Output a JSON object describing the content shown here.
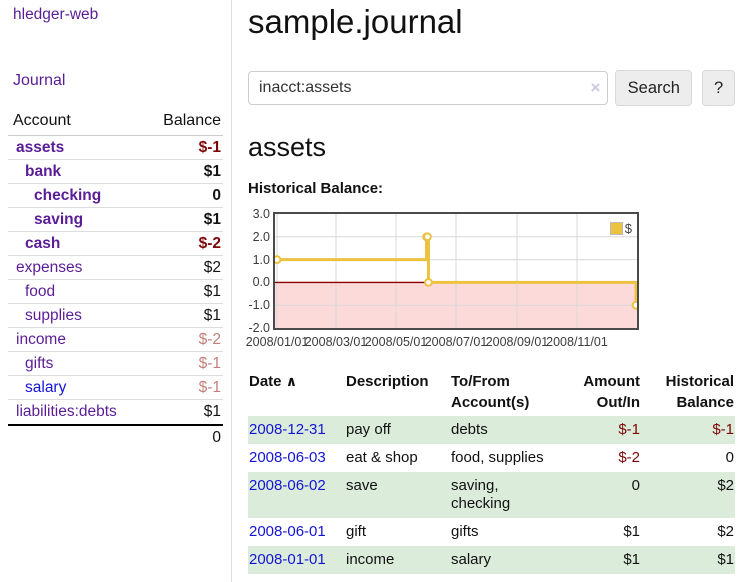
{
  "colors": {
    "link-purple": "#5a1d96",
    "link-blue": "#1414d6",
    "negative-strong": "#7d0606",
    "negative-soft": "#c47e7e",
    "row-stripe-green": "#dcecdb",
    "chart-line": "#edc240",
    "divider": "#dddddd"
  },
  "app": {
    "brand": "hledger-web",
    "nav_journal": "Journal"
  },
  "sidebar": {
    "header": {
      "account": "Account",
      "balance": "Balance"
    },
    "accounts": [
      {
        "name": "assets",
        "balance": "$-1",
        "level": 1,
        "bold": true
      },
      {
        "name": "bank",
        "balance": "$1",
        "level": 2,
        "bold": true
      },
      {
        "name": "checking",
        "balance": "0",
        "level": 3,
        "bold": true
      },
      {
        "name": "saving",
        "balance": "$1",
        "level": 3,
        "bold": true
      },
      {
        "name": "cash",
        "balance": "$-2",
        "level": 2,
        "bold": true
      },
      {
        "name": "expenses",
        "balance": "$2",
        "level": 1,
        "bold": false
      },
      {
        "name": "food",
        "balance": "$1",
        "level": 2,
        "bold": false
      },
      {
        "name": "supplies",
        "balance": "$1",
        "level": 2,
        "bold": false
      },
      {
        "name": "income",
        "balance": "$-2",
        "level": 1,
        "bold": false
      },
      {
        "name": "gifts",
        "balance": "$-1",
        "level": 2,
        "bold": false
      },
      {
        "name": "salary",
        "balance": "$-1",
        "level": 2,
        "bold": false,
        "link": "blue"
      },
      {
        "name": "liabilities:debts",
        "balance": "$1",
        "level": 1,
        "bold": false
      }
    ],
    "total": "0"
  },
  "header": {
    "title": "sample.journal"
  },
  "search": {
    "value": "inacct:assets",
    "clear_icon": "×",
    "button": "Search",
    "help_button": "?"
  },
  "account_page": {
    "heading": "assets"
  },
  "chart_data": {
    "type": "line",
    "step": true,
    "title": "Historical Balance:",
    "series": [
      {
        "name": "$",
        "color": "#edc240",
        "points": [
          {
            "date": "2008-01-01",
            "value": 1
          },
          {
            "date": "2008-06-01",
            "value": 2
          },
          {
            "date": "2008-06-02",
            "value": 2
          },
          {
            "date": "2008-06-03",
            "value": 0
          },
          {
            "date": "2008-12-31",
            "value": -1
          }
        ]
      }
    ],
    "x_range": [
      "2008-01-01",
      "2008-12-31"
    ],
    "x_ticks": [
      "2008/01/01",
      "2008/03/01",
      "2008/05/01",
      "2008/07/01",
      "2008/09/01",
      "2008/11/01"
    ],
    "y_ticks": [
      3.0,
      2.0,
      1.0,
      0.0,
      -1.0,
      -2.0
    ],
    "ylim": [
      -2.0,
      3.0
    ],
    "grid": true,
    "negative_region_color": "#fcdada",
    "zero_line_color": "#8b0000",
    "legend_position": "top-right",
    "legend_label": "$"
  },
  "register": {
    "columns": {
      "date": "Date",
      "sort_icon": "∧",
      "description": "Description",
      "accounts": "To/From Account(s)",
      "amount": "Amount Out/In",
      "balance": "Historical Balance"
    },
    "rows": [
      {
        "date": "2008-12-31",
        "description": "pay off",
        "accounts": "debts",
        "amount": "$-1",
        "balance": "$-1"
      },
      {
        "date": "2008-06-03",
        "description": "eat & shop",
        "accounts": "food, supplies",
        "amount": "$-2",
        "balance": "0"
      },
      {
        "date": "2008-06-02",
        "description": "save",
        "accounts": "saving, checking",
        "amount": "0",
        "balance": "$2"
      },
      {
        "date": "2008-06-01",
        "description": "gift",
        "accounts": "gifts",
        "amount": "$1",
        "balance": "$2"
      },
      {
        "date": "2008-01-01",
        "description": "income",
        "accounts": "salary",
        "amount": "$1",
        "balance": "$1"
      }
    ]
  }
}
